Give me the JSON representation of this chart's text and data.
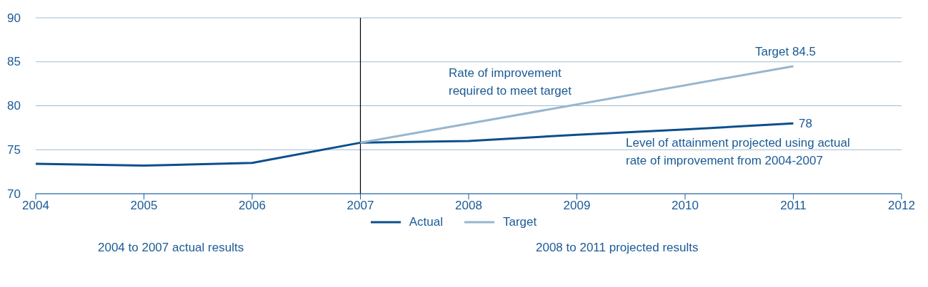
{
  "chart_data": {
    "type": "line",
    "series": [
      {
        "name": "Actual",
        "color": "#0b4f8c",
        "x": [
          2004,
          2005,
          2006,
          2007,
          2008,
          2009,
          2010,
          2011
        ],
        "values": [
          73.4,
          73.2,
          73.5,
          75.8,
          76.0,
          76.7,
          77.3,
          78.0
        ]
      },
      {
        "name": "Target",
        "color": "#97b6cf",
        "x": [
          2007,
          2011
        ],
        "values": [
          75.8,
          84.5
        ]
      }
    ],
    "xlim": [
      2004,
      2012
    ],
    "xticks": [
      2004,
      2005,
      2006,
      2007,
      2008,
      2009,
      2010,
      2011,
      2012
    ],
    "ylim": [
      70,
      90
    ],
    "yticks": [
      70,
      75,
      80,
      85,
      90
    ],
    "grid": "y",
    "legend": "bottom",
    "marker": "none",
    "line_style": "solid",
    "ref_lines": [
      {
        "axis": "x",
        "value": 2007,
        "color": "#000000"
      }
    ],
    "annotations": [
      "Target 84.5",
      "78",
      "Rate of improvement\nrequired to meet target",
      "Level of attainment projected using actual\nrate of improvement from 2004-2007",
      "2004 to 2007 actual results",
      "2008 to 2011 projected results"
    ]
  }
}
